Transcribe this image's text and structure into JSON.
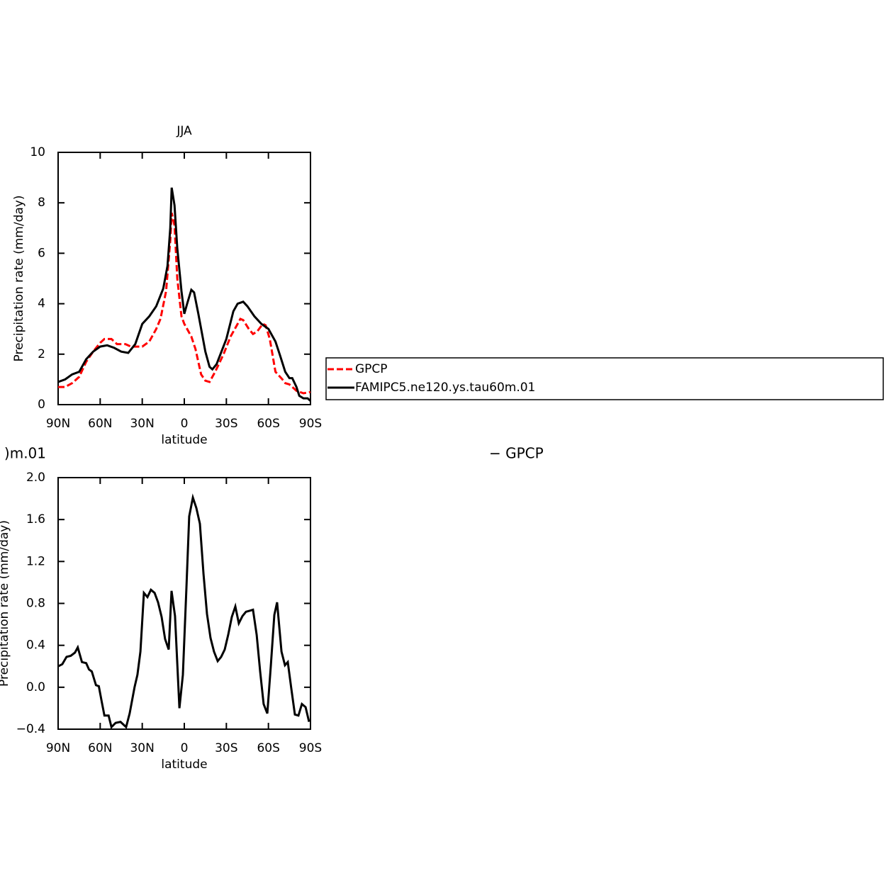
{
  "chart_data": [
    {
      "type": "line",
      "title": "JJA",
      "x_label": "latitude",
      "y_label": "Precipitation rate (mm/day)",
      "xlim": [
        90,
        -90
      ],
      "ylim": [
        0,
        10
      ],
      "xticks": [
        {
          "value": 90,
          "label": "90N"
        },
        {
          "value": 60,
          "label": "60N"
        },
        {
          "value": 30,
          "label": "30N"
        },
        0,
        {
          "value": -30,
          "label": "30S"
        },
        {
          "value": -60,
          "label": "60S"
        },
        {
          "value": -90,
          "label": "90S"
        }
      ],
      "yticks": [
        0,
        2,
        4,
        6,
        8,
        10
      ],
      "legend": "right",
      "series": [
        {
          "name": "GPCP",
          "color": "#ff0000",
          "dash": true,
          "x": [
            90,
            85,
            80,
            75,
            70,
            65,
            60,
            57,
            52,
            48,
            42,
            38,
            30,
            25,
            20,
            17,
            13,
            10,
            9,
            7,
            5,
            2,
            0,
            -5,
            -8,
            -12,
            -15,
            -18,
            -22,
            -28,
            -33,
            -38,
            -40,
            -42,
            -46,
            -49,
            -52,
            -56,
            -58,
            -61,
            -65,
            -70,
            -72,
            -75,
            -80,
            -85,
            -90
          ],
          "values": [
            0.7,
            0.7,
            0.85,
            1.1,
            1.7,
            2.1,
            2.45,
            2.6,
            2.6,
            2.4,
            2.4,
            2.3,
            2.3,
            2.5,
            3.0,
            3.4,
            4.5,
            6.5,
            7.6,
            7.1,
            5.0,
            3.5,
            3.2,
            2.7,
            2.2,
            1.2,
            0.95,
            0.9,
            1.3,
            2.0,
            2.7,
            3.2,
            3.4,
            3.35,
            3.0,
            2.8,
            2.9,
            3.2,
            3.15,
            2.6,
            1.3,
            1.0,
            0.85,
            0.8,
            0.55,
            0.45,
            0.5
          ]
        },
        {
          "name": "FAMIPC5.ne120.ys.tau60m.01",
          "color": "#000000",
          "dash": false,
          "x": [
            90,
            85,
            80,
            75,
            70,
            65,
            60,
            55,
            50,
            45,
            40,
            35,
            30,
            25,
            20,
            15,
            12,
            10,
            9,
            7,
            5,
            2,
            0,
            -2,
            -5,
            -7,
            -10,
            -15,
            -18,
            -20,
            -23,
            -30,
            -35,
            -38,
            -42,
            -45,
            -50,
            -55,
            -60,
            -65,
            -68,
            -72,
            -75,
            -77,
            -80,
            -82,
            -85,
            -88,
            -90
          ],
          "values": [
            0.9,
            1.0,
            1.2,
            1.3,
            1.8,
            2.1,
            2.3,
            2.35,
            2.25,
            2.1,
            2.05,
            2.4,
            3.2,
            3.5,
            3.9,
            4.6,
            5.5,
            7.0,
            8.6,
            7.9,
            6.2,
            4.5,
            3.6,
            4.0,
            4.55,
            4.45,
            3.6,
            2.1,
            1.5,
            1.4,
            1.6,
            2.6,
            3.7,
            4.0,
            4.08,
            3.9,
            3.5,
            3.2,
            3.0,
            2.5,
            2.0,
            1.3,
            1.05,
            1.05,
            0.7,
            0.35,
            0.25,
            0.25,
            0.15
          ]
        }
      ]
    },
    {
      "type": "line",
      "title": ")m.01",
      "title_right": "− GPCP",
      "x_label": "latitude",
      "y_label": "Precipitation rate (mm/day)",
      "xlim": [
        90,
        -90
      ],
      "ylim": [
        -0.4,
        2.0
      ],
      "xticks": [
        {
          "value": 90,
          "label": "90N"
        },
        {
          "value": 60,
          "label": "60N"
        },
        {
          "value": 30,
          "label": "30N"
        },
        0,
        {
          "value": -30,
          "label": "30S"
        },
        {
          "value": -60,
          "label": "60S"
        },
        {
          "value": -90,
          "label": "90S"
        }
      ],
      "yticks": [
        {
          "value": -0.4,
          "label": "−0.4"
        },
        {
          "value": 0,
          "label": "0.0"
        },
        0.4,
        0.8,
        1.2,
        1.6,
        {
          "value": 2,
          "label": "2.0"
        }
      ],
      "series": [
        {
          "color": "#000000",
          "dash": false,
          "x": [
            90,
            87,
            84,
            81,
            78,
            76,
            73,
            70,
            68,
            66,
            63,
            61,
            59,
            57,
            54,
            52,
            49,
            45.5,
            41.5,
            39,
            35.5,
            33.4,
            31.3,
            28.8,
            26.3,
            23.8,
            21.2,
            18.7,
            16.2,
            13.7,
            11.1,
            9.1,
            6.6,
            3.5,
            1,
            -1.5,
            -3.5,
            -6.1,
            -8.6,
            -11.1,
            -13.7,
            -16.2,
            -18.7,
            -21.2,
            -23.8,
            -26.3,
            -28.8,
            -31.3,
            -33.9,
            -36.4,
            -38.9,
            -41.5,
            -44,
            -46.5,
            -49,
            -51.6,
            -54.1,
            -56.6,
            -59.2,
            -61.7,
            -64.2,
            -66.2,
            -69.3,
            -71.8,
            -73.8,
            -76.3,
            -78.9,
            -81.4,
            -83.9,
            -86.5,
            -89
          ],
          "values": [
            0.2,
            0.22,
            0.29,
            0.3,
            0.33,
            0.38,
            0.24,
            0.23,
            0.17,
            0.15,
            0.02,
            0.01,
            -0.13,
            -0.27,
            -0.27,
            -0.38,
            -0.34,
            -0.33,
            -0.38,
            -0.25,
            0.0,
            0.12,
            0.34,
            0.9,
            0.86,
            0.93,
            0.9,
            0.81,
            0.67,
            0.46,
            0.36,
            0.92,
            0.68,
            -0.2,
            0.12,
            0.95,
            1.63,
            1.81,
            1.71,
            1.56,
            1.08,
            0.7,
            0.47,
            0.34,
            0.25,
            0.29,
            0.36,
            0.5,
            0.67,
            0.77,
            0.61,
            0.68,
            0.72,
            0.73,
            0.74,
            0.5,
            0.15,
            -0.16,
            -0.25,
            0.2,
            0.69,
            0.81,
            0.34,
            0.21,
            0.24,
            -0.01,
            -0.26,
            -0.27,
            -0.16,
            -0.19,
            -0.33
          ]
        }
      ]
    }
  ]
}
